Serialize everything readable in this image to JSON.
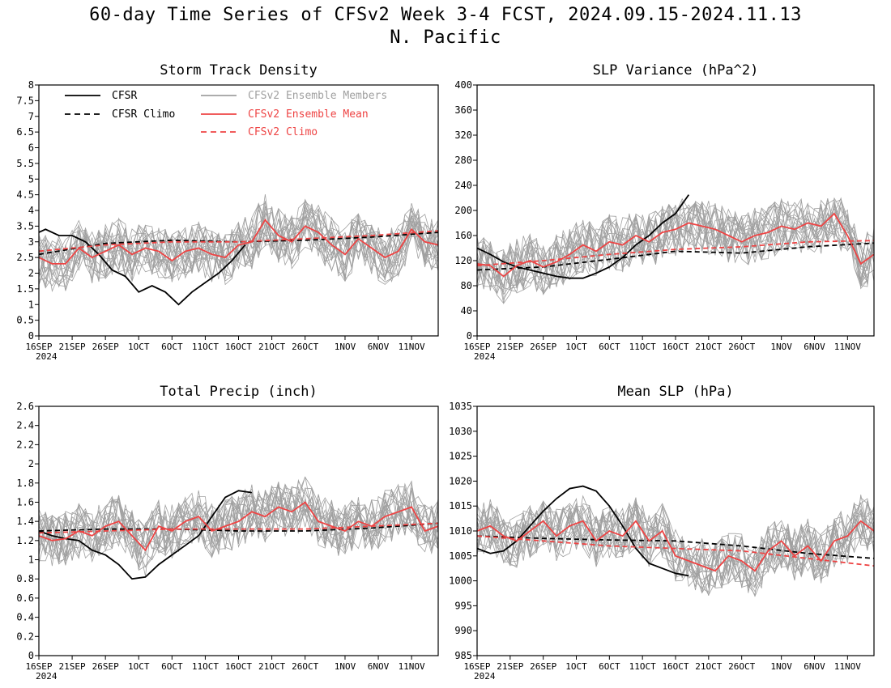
{
  "title": "60-day Time Series of CFSv2 Week 3-4 FCST, 2024.09.15-2024.11.13",
  "subtitle": "N. Pacific",
  "colors": {
    "cfsr": "#000000",
    "ensemble_members": "#a0a0a0",
    "ensemble_mean": "#ee4444",
    "cfsv2_climo": "#ee4444"
  },
  "legend_entries": [
    {
      "label": "CFSR",
      "style": "solid",
      "color": "#000000"
    },
    {
      "label": "CFSR Climo",
      "style": "dashed",
      "color": "#000000"
    },
    {
      "label": "CFSv2 Ensemble Members",
      "style": "solid",
      "color": "#a0a0a0"
    },
    {
      "label": "CFSv2 Ensemble Mean",
      "style": "solid",
      "color": "#ee4444"
    },
    {
      "label": "CFSv2 Climo",
      "style": "dashed",
      "color": "#ee4444"
    }
  ],
  "chart_data": [
    {
      "type": "line",
      "title": "Storm Track Density",
      "ylim": [
        0,
        8
      ],
      "yticks": [
        "0",
        "0.5",
        "1",
        "1.5",
        "2",
        "2.5",
        "3",
        "3.5",
        "4",
        "4.5",
        "5",
        "5.5",
        "6",
        "6.5",
        "7",
        "7.5",
        "8"
      ],
      "x_ticks": [
        "16SEP",
        "21SEP",
        "26SEP",
        "1OCT",
        "6OCT",
        "11OCT",
        "16OCT",
        "21OCT",
        "26OCT",
        "1NOV",
        "6NOV",
        "11NOV"
      ],
      "x_year_label": "2024",
      "legend": "top-left",
      "series": [
        {
          "name": "CFSR",
          "x_days": [
            0,
            1,
            3,
            5,
            7,
            9,
            11,
            13,
            15,
            17,
            19,
            21,
            23,
            25,
            27,
            29,
            31
          ],
          "values": [
            3.3,
            3.4,
            3.2,
            3.2,
            3.0,
            2.6,
            2.1,
            1.9,
            1.4,
            1.6,
            1.4,
            1.0,
            1.4,
            1.7,
            2.0,
            2.4,
            2.9
          ]
        },
        {
          "name": "CFSR Climo",
          "x_days": [
            0,
            10,
            20,
            30,
            40,
            50,
            60
          ],
          "values": [
            2.6,
            2.95,
            3.05,
            3.0,
            3.05,
            3.15,
            3.3
          ]
        },
        {
          "name": "CFSv2 Ensemble Mean",
          "x_days": [
            0,
            2,
            4,
            6,
            8,
            10,
            12,
            14,
            16,
            18,
            20,
            22,
            24,
            26,
            28,
            30,
            32,
            34,
            36,
            38,
            40,
            42,
            44,
            46,
            48,
            50,
            52,
            54,
            56,
            58,
            60
          ],
          "values": [
            2.5,
            2.3,
            2.3,
            2.8,
            2.5,
            2.7,
            2.9,
            2.6,
            2.8,
            2.7,
            2.4,
            2.7,
            2.8,
            2.6,
            2.5,
            2.9,
            3.0,
            3.7,
            3.2,
            3.0,
            3.5,
            3.3,
            2.9,
            2.6,
            3.1,
            2.8,
            2.5,
            2.7,
            3.4,
            3.0,
            2.9
          ]
        },
        {
          "name": "CFSv2 Climo",
          "x_days": [
            0,
            10,
            20,
            30,
            40,
            50,
            60
          ],
          "values": [
            2.7,
            2.9,
            3.0,
            3.0,
            3.1,
            3.2,
            3.35
          ]
        }
      ]
    },
    {
      "type": "line",
      "title": "SLP Variance (hPa^2)",
      "ylim": [
        0,
        400
      ],
      "yticks": [
        "0",
        "40",
        "80",
        "120",
        "160",
        "200",
        "240",
        "280",
        "320",
        "360",
        "400"
      ],
      "x_ticks": [
        "16SEP",
        "21SEP",
        "26SEP",
        "1OCT",
        "6OCT",
        "11OCT",
        "16OCT",
        "21OCT",
        "26OCT",
        "1NOV",
        "6NOV",
        "11NOV"
      ],
      "x_year_label": "2024",
      "series": [
        {
          "name": "CFSR",
          "x_days": [
            0,
            2,
            4,
            6,
            8,
            10,
            12,
            14,
            16,
            18,
            20,
            22,
            24,
            26,
            28,
            30,
            32
          ],
          "values": [
            140,
            130,
            118,
            110,
            105,
            100,
            95,
            92,
            92,
            100,
            110,
            125,
            145,
            160,
            180,
            195,
            225
          ]
        },
        {
          "name": "CFSR Climo",
          "x_days": [
            0,
            10,
            20,
            30,
            40,
            50,
            60
          ],
          "values": [
            105,
            110,
            122,
            135,
            132,
            142,
            148
          ]
        },
        {
          "name": "CFSv2 Ensemble Mean",
          "x_days": [
            0,
            2,
            4,
            6,
            8,
            10,
            12,
            14,
            16,
            18,
            20,
            22,
            24,
            26,
            28,
            30,
            32,
            34,
            36,
            38,
            40,
            42,
            44,
            46,
            48,
            50,
            52,
            54,
            56,
            58,
            60
          ],
          "values": [
            115,
            112,
            95,
            112,
            120,
            110,
            118,
            130,
            145,
            135,
            150,
            145,
            160,
            150,
            165,
            170,
            180,
            175,
            170,
            160,
            150,
            160,
            165,
            175,
            170,
            180,
            175,
            195,
            160,
            115,
            130
          ]
        },
        {
          "name": "CFSv2 Climo",
          "x_days": [
            0,
            10,
            20,
            30,
            40,
            50,
            60
          ],
          "values": [
            112,
            120,
            130,
            138,
            142,
            150,
            152
          ]
        }
      ]
    },
    {
      "type": "line",
      "title": "Total Precip (inch)",
      "ylim": [
        0,
        2.6
      ],
      "yticks": [
        "0",
        "0.2",
        "0.4",
        "0.6",
        "0.8",
        "1",
        "1.2",
        "1.4",
        "1.6",
        "1.8",
        "2",
        "2.2",
        "2.4",
        "2.6"
      ],
      "x_ticks": [
        "16SEP",
        "21SEP",
        "26SEP",
        "1OCT",
        "6OCT",
        "11OCT",
        "16OCT",
        "21OCT",
        "26OCT",
        "1NOV",
        "6NOV",
        "11NOV"
      ],
      "x_year_label": "2024",
      "series": [
        {
          "name": "CFSR",
          "x_days": [
            0,
            2,
            4,
            6,
            8,
            10,
            12,
            14,
            16,
            18,
            20,
            22,
            24,
            26,
            28,
            30,
            32
          ],
          "values": [
            1.3,
            1.25,
            1.22,
            1.2,
            1.1,
            1.05,
            0.95,
            0.8,
            0.82,
            0.95,
            1.05,
            1.15,
            1.25,
            1.45,
            1.65,
            1.72,
            1.7
          ]
        },
        {
          "name": "CFSR Climo",
          "x_days": [
            0,
            10,
            20,
            30,
            40,
            50,
            60
          ],
          "values": [
            1.3,
            1.32,
            1.32,
            1.3,
            1.3,
            1.33,
            1.38
          ]
        },
        {
          "name": "CFSv2 Ensemble Mean",
          "x_days": [
            0,
            2,
            4,
            6,
            8,
            10,
            12,
            14,
            16,
            18,
            20,
            22,
            24,
            26,
            28,
            30,
            32,
            34,
            36,
            38,
            40,
            42,
            44,
            46,
            48,
            50,
            52,
            54,
            56,
            58,
            60
          ],
          "values": [
            1.25,
            1.2,
            1.22,
            1.3,
            1.25,
            1.35,
            1.4,
            1.25,
            1.1,
            1.35,
            1.3,
            1.4,
            1.45,
            1.3,
            1.35,
            1.4,
            1.5,
            1.45,
            1.55,
            1.5,
            1.6,
            1.4,
            1.35,
            1.3,
            1.4,
            1.35,
            1.45,
            1.5,
            1.55,
            1.3,
            1.35
          ]
        },
        {
          "name": "CFSv2 Climo",
          "x_days": [
            0,
            10,
            20,
            30,
            40,
            50,
            60
          ],
          "values": [
            1.28,
            1.3,
            1.32,
            1.32,
            1.32,
            1.35,
            1.38
          ]
        }
      ]
    },
    {
      "type": "line",
      "title": "Mean SLP (hPa)",
      "ylim": [
        985,
        1035
      ],
      "yticks": [
        "985",
        "990",
        "995",
        "1000",
        "1005",
        "1010",
        "1015",
        "1020",
        "1025",
        "1030",
        "1035"
      ],
      "x_ticks": [
        "16SEP",
        "21SEP",
        "26SEP",
        "1OCT",
        "6OCT",
        "11OCT",
        "16OCT",
        "21OCT",
        "26OCT",
        "1NOV",
        "6NOV",
        "11NOV"
      ],
      "x_year_label": "2024",
      "series": [
        {
          "name": "CFSR",
          "x_days": [
            0,
            2,
            4,
            6,
            8,
            10,
            12,
            14,
            16,
            18,
            20,
            22,
            24,
            26,
            28,
            30,
            32
          ],
          "values": [
            1006.5,
            1005.5,
            1006,
            1008,
            1011,
            1014,
            1016.5,
            1018.5,
            1019,
            1018,
            1015,
            1011,
            1006.5,
            1003.5,
            1002.5,
            1001.5,
            1001
          ]
        },
        {
          "name": "CFSR Climo",
          "x_days": [
            0,
            10,
            20,
            30,
            40,
            50,
            60
          ],
          "values": [
            1009,
            1008.5,
            1008.2,
            1008,
            1007,
            1005.5,
            1004.5
          ]
        },
        {
          "name": "CFSv2 Ensemble Mean",
          "x_days": [
            0,
            2,
            4,
            6,
            8,
            10,
            12,
            14,
            16,
            18,
            20,
            22,
            24,
            26,
            28,
            30,
            32,
            34,
            36,
            38,
            40,
            42,
            44,
            46,
            48,
            50,
            52,
            54,
            56,
            58,
            60
          ],
          "values": [
            1010,
            1011,
            1009,
            1008,
            1010,
            1012,
            1009,
            1011,
            1012,
            1008,
            1010,
            1009,
            1012,
            1008,
            1010,
            1005,
            1004,
            1003,
            1002,
            1005,
            1004,
            1002,
            1006,
            1008,
            1005,
            1007,
            1004,
            1008,
            1009,
            1012,
            1010
          ]
        },
        {
          "name": "CFSv2 Climo",
          "x_days": [
            0,
            10,
            20,
            30,
            40,
            50,
            60
          ],
          "values": [
            1009,
            1008,
            1007,
            1006.5,
            1006,
            1004.5,
            1003
          ]
        }
      ]
    }
  ]
}
